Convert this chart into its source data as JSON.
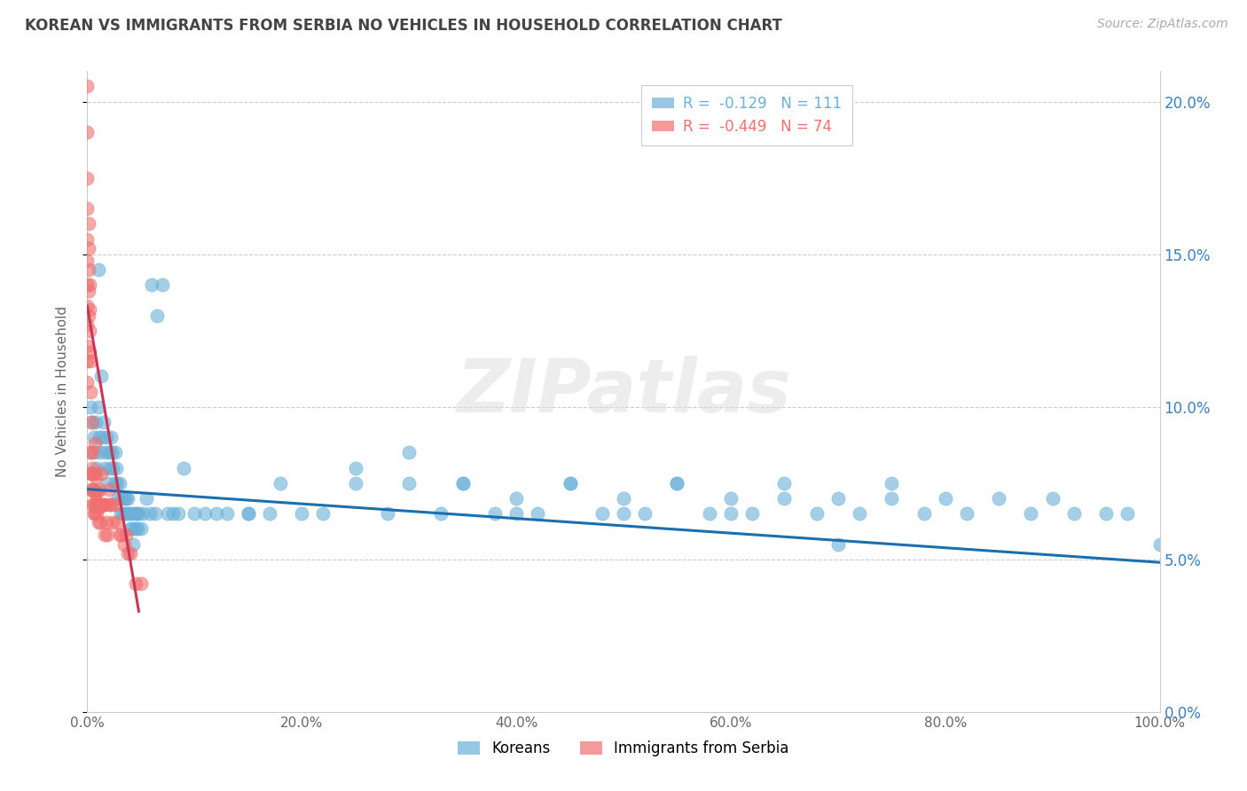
{
  "title": "KOREAN VS IMMIGRANTS FROM SERBIA NO VEHICLES IN HOUSEHOLD CORRELATION CHART",
  "source": "Source: ZipAtlas.com",
  "ylabel": "No Vehicles in Household",
  "xlim": [
    0.0,
    1.0
  ],
  "ylim": [
    0.0,
    0.21
  ],
  "yticks": [
    0.0,
    0.05,
    0.1,
    0.15,
    0.2
  ],
  "ytick_labels_right": [
    "0.0%",
    "5.0%",
    "10.0%",
    "15.0%",
    "20.0%"
  ],
  "xticks": [
    0.0,
    0.2,
    0.4,
    0.6,
    0.8,
    1.0
  ],
  "xtick_labels": [
    "0.0%",
    "20.0%",
    "40.0%",
    "60.0%",
    "80.0%",
    "100.0%"
  ],
  "legend_top": [
    {
      "label": "R =  -0.129   N = 111",
      "color": "#6ab0d8"
    },
    {
      "label": "R =  -0.449   N = 74",
      "color": "#f07070"
    }
  ],
  "legend_bottom": [
    {
      "label": "Koreans",
      "color": "#6ab0d8"
    },
    {
      "label": "Immigrants from Serbia",
      "color": "#f07070"
    }
  ],
  "watermark": "ZIPatlas",
  "korean_color": "#6ab0d8",
  "serbia_color": "#f07070",
  "korean_trend": [
    0.0,
    0.073,
    1.0,
    0.049
  ],
  "serbia_trend": [
    0.0,
    0.133,
    0.048,
    0.033
  ],
  "grid_color": "#cccccc",
  "title_color": "#444444",
  "bg_color": "#ffffff",
  "koreans_x": [
    0.003,
    0.005,
    0.006,
    0.007,
    0.008,
    0.009,
    0.01,
    0.01,
    0.011,
    0.012,
    0.013,
    0.014,
    0.015,
    0.016,
    0.017,
    0.018,
    0.019,
    0.02,
    0.021,
    0.022,
    0.023,
    0.024,
    0.025,
    0.026,
    0.027,
    0.028,
    0.029,
    0.03,
    0.031,
    0.032,
    0.033,
    0.034,
    0.035,
    0.036,
    0.037,
    0.038,
    0.039,
    0.04,
    0.041,
    0.042,
    0.043,
    0.044,
    0.045,
    0.046,
    0.047,
    0.048,
    0.05,
    0.052,
    0.055,
    0.058,
    0.06,
    0.063,
    0.065,
    0.07,
    0.075,
    0.08,
    0.085,
    0.09,
    0.1,
    0.11,
    0.12,
    0.13,
    0.15,
    0.17,
    0.2,
    0.22,
    0.25,
    0.28,
    0.3,
    0.33,
    0.35,
    0.38,
    0.4,
    0.42,
    0.45,
    0.48,
    0.5,
    0.52,
    0.55,
    0.58,
    0.6,
    0.62,
    0.65,
    0.68,
    0.7,
    0.72,
    0.75,
    0.78,
    0.8,
    0.82,
    0.85,
    0.88,
    0.9,
    0.92,
    0.95,
    0.97,
    1.0,
    0.25,
    0.3,
    0.35,
    0.4,
    0.45,
    0.5,
    0.55,
    0.6,
    0.65,
    0.7,
    0.75,
    0.15,
    0.18
  ],
  "koreans_y": [
    0.1,
    0.095,
    0.09,
    0.085,
    0.095,
    0.08,
    0.145,
    0.1,
    0.09,
    0.085,
    0.11,
    0.09,
    0.095,
    0.08,
    0.085,
    0.09,
    0.075,
    0.085,
    0.08,
    0.09,
    0.085,
    0.08,
    0.075,
    0.085,
    0.08,
    0.075,
    0.07,
    0.075,
    0.065,
    0.07,
    0.065,
    0.07,
    0.065,
    0.07,
    0.065,
    0.07,
    0.065,
    0.06,
    0.065,
    0.06,
    0.055,
    0.065,
    0.06,
    0.065,
    0.06,
    0.065,
    0.06,
    0.065,
    0.07,
    0.065,
    0.14,
    0.065,
    0.13,
    0.14,
    0.065,
    0.065,
    0.065,
    0.08,
    0.065,
    0.065,
    0.065,
    0.065,
    0.065,
    0.065,
    0.065,
    0.065,
    0.075,
    0.065,
    0.075,
    0.065,
    0.075,
    0.065,
    0.07,
    0.065,
    0.075,
    0.065,
    0.07,
    0.065,
    0.075,
    0.065,
    0.07,
    0.065,
    0.075,
    0.065,
    0.07,
    0.065,
    0.07,
    0.065,
    0.07,
    0.065,
    0.07,
    0.065,
    0.07,
    0.065,
    0.065,
    0.065,
    0.055,
    0.08,
    0.085,
    0.075,
    0.065,
    0.075,
    0.065,
    0.075,
    0.065,
    0.07,
    0.055,
    0.075,
    0.065,
    0.075
  ],
  "serbia_x": [
    0.0,
    0.0,
    0.0,
    0.0,
    0.0,
    0.0,
    0.0,
    0.0,
    0.0,
    0.0,
    0.0,
    0.0,
    0.001,
    0.001,
    0.001,
    0.001,
    0.001,
    0.002,
    0.002,
    0.002,
    0.002,
    0.003,
    0.003,
    0.003,
    0.004,
    0.004,
    0.004,
    0.005,
    0.005,
    0.005,
    0.006,
    0.006,
    0.006,
    0.007,
    0.007,
    0.007,
    0.008,
    0.008,
    0.008,
    0.009,
    0.009,
    0.009,
    0.01,
    0.01,
    0.011,
    0.011,
    0.012,
    0.012,
    0.013,
    0.013,
    0.014,
    0.015,
    0.016,
    0.017,
    0.018,
    0.019,
    0.02,
    0.021,
    0.022,
    0.024,
    0.026,
    0.028,
    0.03,
    0.032,
    0.034,
    0.036,
    0.038,
    0.04,
    0.045,
    0.05,
    0.003,
    0.004,
    0.005,
    0.006
  ],
  "serbia_y": [
    0.205,
    0.19,
    0.175,
    0.165,
    0.155,
    0.148,
    0.14,
    0.133,
    0.127,
    0.12,
    0.115,
    0.108,
    0.16,
    0.152,
    0.145,
    0.138,
    0.13,
    0.14,
    0.132,
    0.125,
    0.118,
    0.115,
    0.105,
    0.085,
    0.095,
    0.085,
    0.078,
    0.08,
    0.073,
    0.068,
    0.072,
    0.065,
    0.068,
    0.088,
    0.078,
    0.065,
    0.072,
    0.077,
    0.068,
    0.068,
    0.072,
    0.065,
    0.062,
    0.068,
    0.073,
    0.067,
    0.062,
    0.068,
    0.078,
    0.068,
    0.068,
    0.068,
    0.058,
    0.068,
    0.062,
    0.058,
    0.073,
    0.068,
    0.068,
    0.062,
    0.068,
    0.062,
    0.058,
    0.058,
    0.055,
    0.058,
    0.052,
    0.052,
    0.042,
    0.042,
    0.078,
    0.073,
    0.078,
    0.073
  ]
}
